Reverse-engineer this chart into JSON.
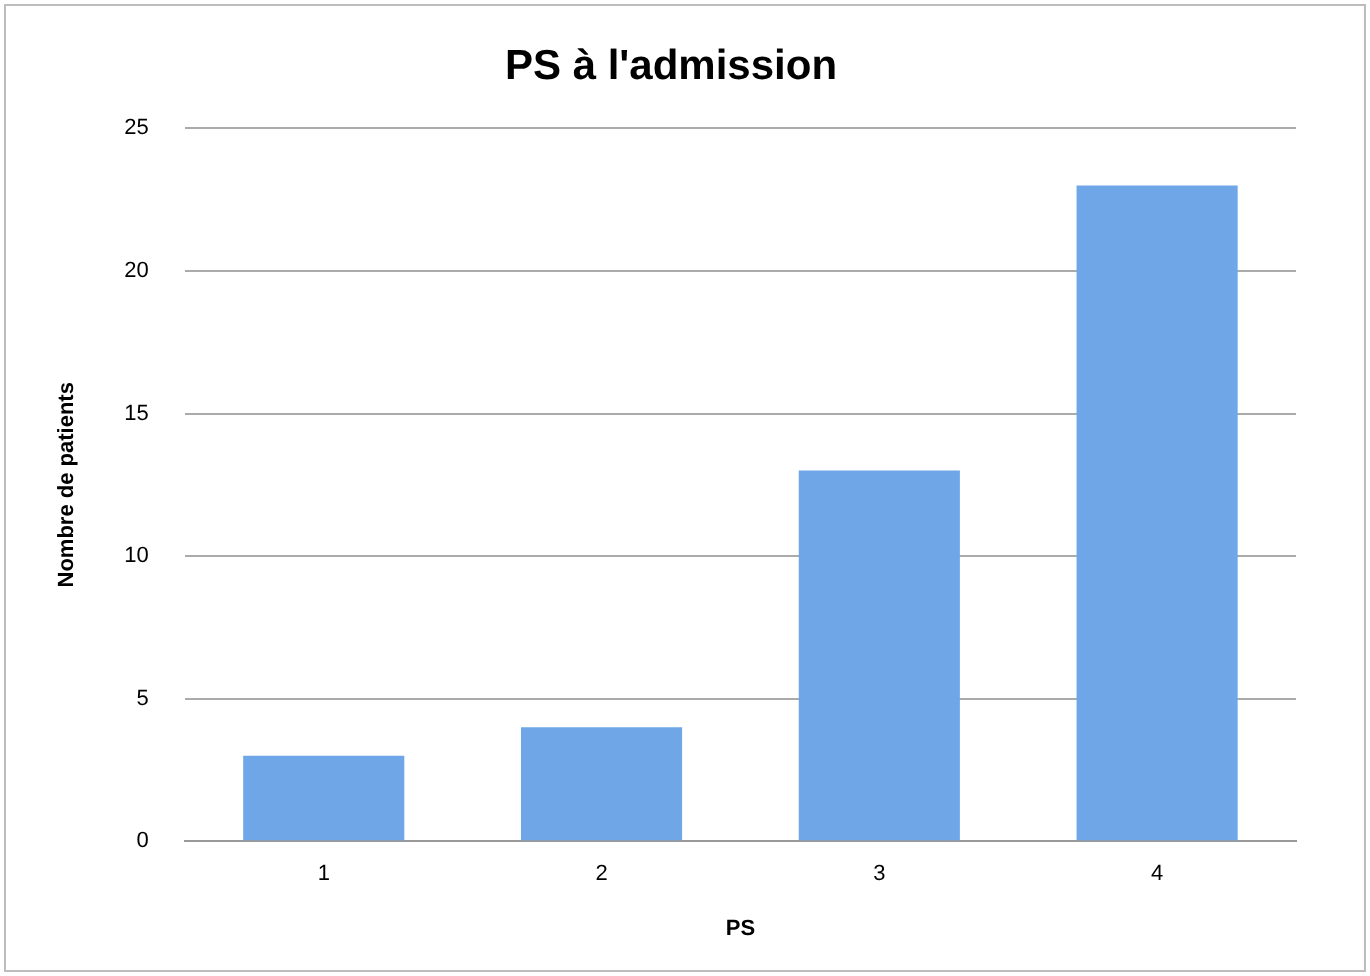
{
  "chart_data": {
    "type": "bar",
    "title": "PS à l'admission",
    "xlabel": "PS",
    "ylabel": "Nombre de patients",
    "categories": [
      "1",
      "2",
      "3",
      "4"
    ],
    "values": [
      3,
      4,
      13,
      23
    ],
    "color": "#6ea6e8",
    "ylim": [
      0,
      25
    ],
    "yticks": [
      0,
      5,
      10,
      15,
      20,
      25
    ],
    "grid": "y"
  }
}
